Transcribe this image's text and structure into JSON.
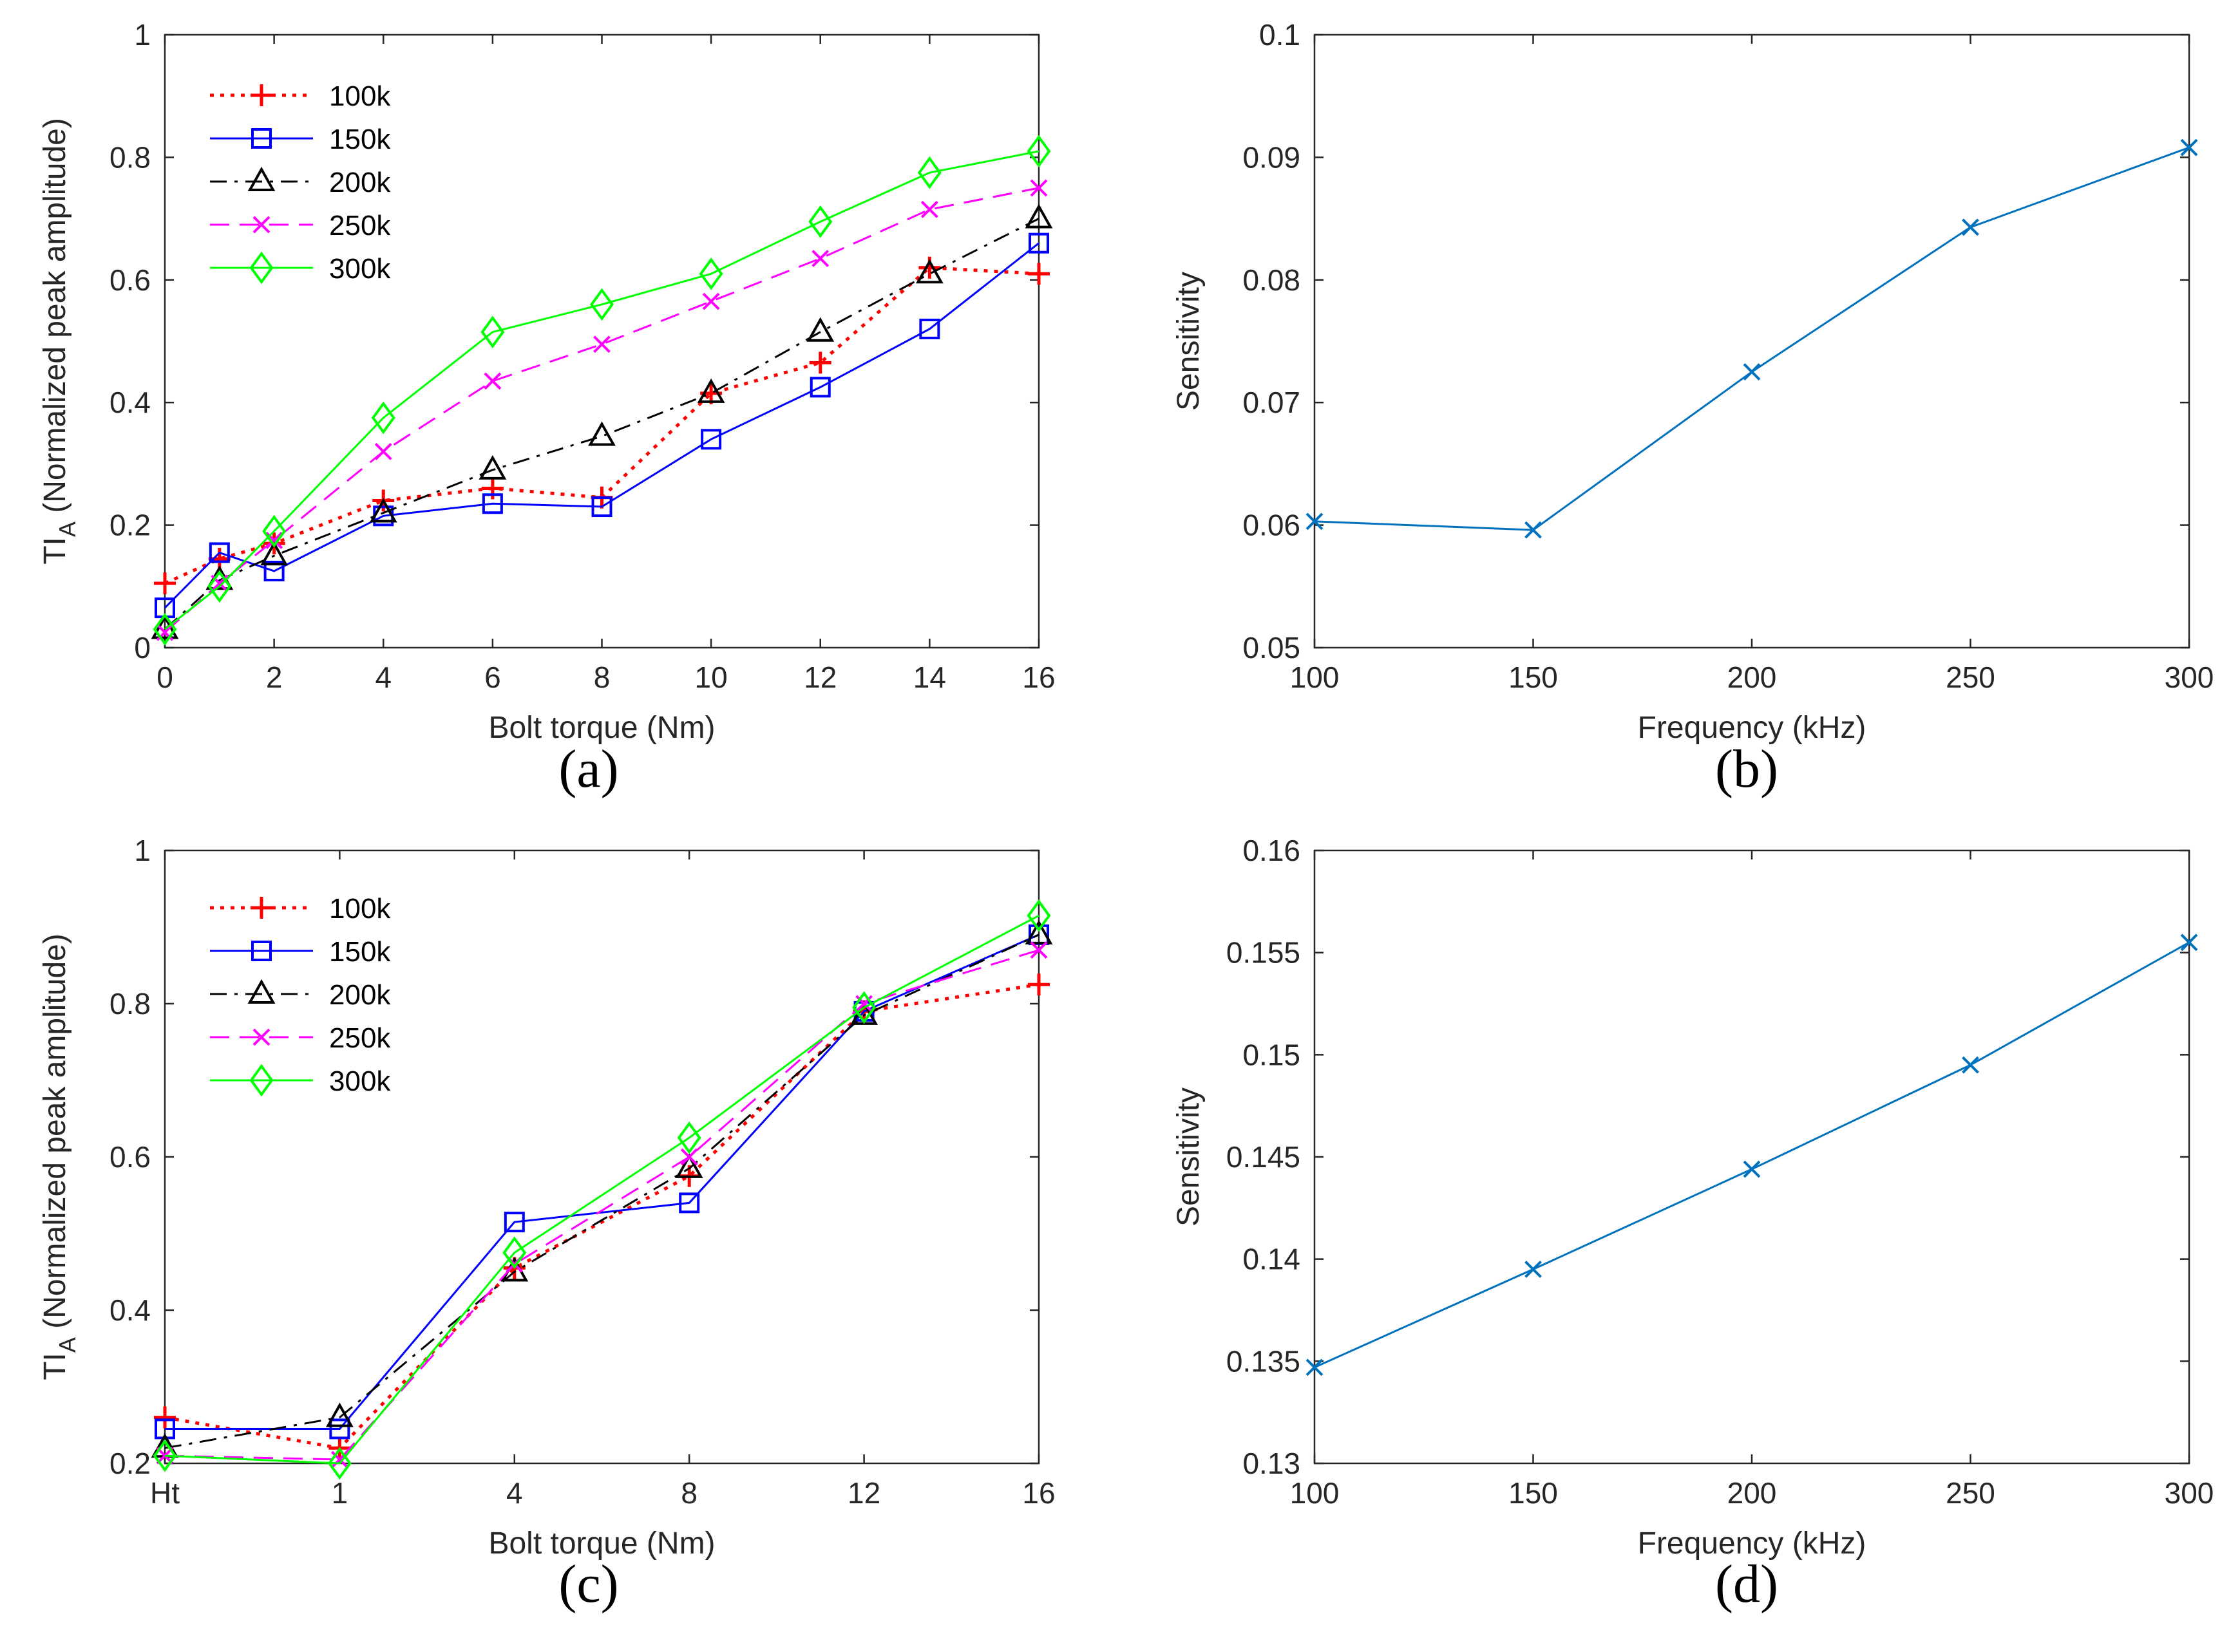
{
  "chart_data": [
    {
      "id": "a",
      "type": "line",
      "caption": "(a)",
      "xlabel": "Bolt torque (Nm)",
      "ylabel_main": "TI",
      "ylabel_sub": "A",
      "ylabel_rest": " (Normalized peak amplitude)",
      "x": [
        0,
        1,
        2,
        4,
        6,
        8,
        10,
        12,
        14,
        16
      ],
      "xlim": [
        0,
        16
      ],
      "xticks": [
        0,
        2,
        4,
        6,
        8,
        10,
        12,
        14,
        16
      ],
      "xtick_labels": [
        "0",
        "2",
        "4",
        "6",
        "8",
        "10",
        "12",
        "14",
        "16"
      ],
      "ylim": [
        0,
        1
      ],
      "yticks": [
        0,
        0.2,
        0.4,
        0.6,
        0.8,
        1
      ],
      "ytick_labels": [
        "0",
        "0.2",
        "0.4",
        "0.6",
        "0.8",
        "1"
      ],
      "legend": "top-left",
      "series": [
        {
          "name": "100k",
          "color": "#ff0000",
          "dash": "dotted",
          "marker": "plus",
          "values": [
            0.105,
            0.145,
            0.17,
            0.24,
            0.26,
            0.245,
            0.415,
            0.465,
            0.62,
            0.61
          ]
        },
        {
          "name": "150k",
          "color": "#0000ff",
          "dash": "solid",
          "marker": "square",
          "values": [
            0.065,
            0.155,
            0.125,
            0.215,
            0.235,
            0.23,
            0.34,
            0.425,
            0.52,
            0.66
          ]
        },
        {
          "name": "200k",
          "color": "#000000",
          "dash": "dashdot",
          "marker": "triangle",
          "values": [
            0.03,
            0.11,
            0.15,
            0.22,
            0.29,
            0.345,
            0.415,
            0.515,
            0.61,
            0.7
          ]
        },
        {
          "name": "250k",
          "color": "#ff00ff",
          "dash": "dashed",
          "marker": "x",
          "values": [
            0.025,
            0.105,
            0.175,
            0.32,
            0.435,
            0.495,
            0.565,
            0.635,
            0.715,
            0.75
          ]
        },
        {
          "name": "300k",
          "color": "#00ff00",
          "dash": "solid",
          "marker": "diamond",
          "values": [
            0.03,
            0.1,
            0.19,
            0.375,
            0.515,
            0.56,
            0.61,
            0.695,
            0.775,
            0.81
          ]
        }
      ]
    },
    {
      "id": "b",
      "type": "line",
      "caption": "(b)",
      "xlabel": "Frequency (kHz)",
      "ylabel": "Sensitivity",
      "x": [
        100,
        150,
        200,
        250,
        300
      ],
      "xlim": [
        100,
        300
      ],
      "xticks": [
        100,
        150,
        200,
        250,
        300
      ],
      "xtick_labels": [
        "100",
        "150",
        "200",
        "250",
        "300"
      ],
      "ylim": [
        0.05,
        0.1
      ],
      "yticks": [
        0.05,
        0.06,
        0.07,
        0.08,
        0.09,
        0.1
      ],
      "ytick_labels": [
        "0.05",
        "0.06",
        "0.07",
        "0.08",
        "0.09",
        "0.1"
      ],
      "series": [
        {
          "name": "Sensitivity",
          "color": "#0072bd",
          "dash": "solid",
          "marker": "x",
          "values": [
            0.0603,
            0.0596,
            0.0725,
            0.0843,
            0.0908
          ]
        }
      ]
    },
    {
      "id": "c",
      "type": "line",
      "caption": "(c)",
      "xlabel": "Bolt torque (Nm)",
      "ylabel_main": "TI",
      "ylabel_sub": "A",
      "ylabel_rest": " (Normalized peak amplitude)",
      "x": [
        0,
        1,
        2,
        3,
        4,
        5
      ],
      "xlim": [
        0,
        5
      ],
      "xticks": [
        0,
        1,
        2,
        3,
        4,
        5
      ],
      "xtick_labels": [
        "Ht",
        "1",
        "4",
        "8",
        "12",
        "16"
      ],
      "ylim": [
        0.2,
        1
      ],
      "yticks": [
        0.2,
        0.4,
        0.6,
        0.8,
        1
      ],
      "ytick_labels": [
        "0.2",
        "0.4",
        "0.6",
        "0.8",
        "1"
      ],
      "legend": "top-left",
      "series": [
        {
          "name": "100k",
          "color": "#ff0000",
          "dash": "dotted",
          "marker": "plus",
          "values": [
            0.26,
            0.22,
            0.455,
            0.575,
            0.79,
            0.825
          ]
        },
        {
          "name": "150k",
          "color": "#0000ff",
          "dash": "solid",
          "marker": "square",
          "values": [
            0.245,
            0.245,
            0.515,
            0.54,
            0.79,
            0.89
          ]
        },
        {
          "name": "200k",
          "color": "#000000",
          "dash": "dashdot",
          "marker": "triangle",
          "values": [
            0.22,
            0.26,
            0.45,
            0.585,
            0.785,
            0.89
          ]
        },
        {
          "name": "250k",
          "color": "#ff00ff",
          "dash": "dashed",
          "marker": "x",
          "values": [
            0.21,
            0.205,
            0.46,
            0.6,
            0.8,
            0.87
          ]
        },
        {
          "name": "300k",
          "color": "#00ff00",
          "dash": "solid",
          "marker": "diamond",
          "values": [
            0.21,
            0.2,
            0.475,
            0.625,
            0.795,
            0.915
          ]
        }
      ]
    },
    {
      "id": "d",
      "type": "line",
      "caption": "(d)",
      "xlabel": "Frequency (kHz)",
      "ylabel": "Sensitivity",
      "x": [
        100,
        150,
        200,
        250,
        300
      ],
      "xlim": [
        100,
        300
      ],
      "xticks": [
        100,
        150,
        200,
        250,
        300
      ],
      "xtick_labels": [
        "100",
        "150",
        "200",
        "250",
        "300"
      ],
      "ylim": [
        0.13,
        0.16
      ],
      "yticks": [
        0.13,
        0.135,
        0.14,
        0.145,
        0.15,
        0.155,
        0.16
      ],
      "ytick_labels": [
        "0.13",
        "0.135",
        "0.14",
        "0.145",
        "0.15",
        "0.155",
        "0.16"
      ],
      "series": [
        {
          "name": "Sensitivity",
          "color": "#0072bd",
          "dash": "solid",
          "marker": "x",
          "values": [
            0.1347,
            0.1395,
            0.1444,
            0.1495,
            0.1555
          ]
        }
      ]
    }
  ]
}
